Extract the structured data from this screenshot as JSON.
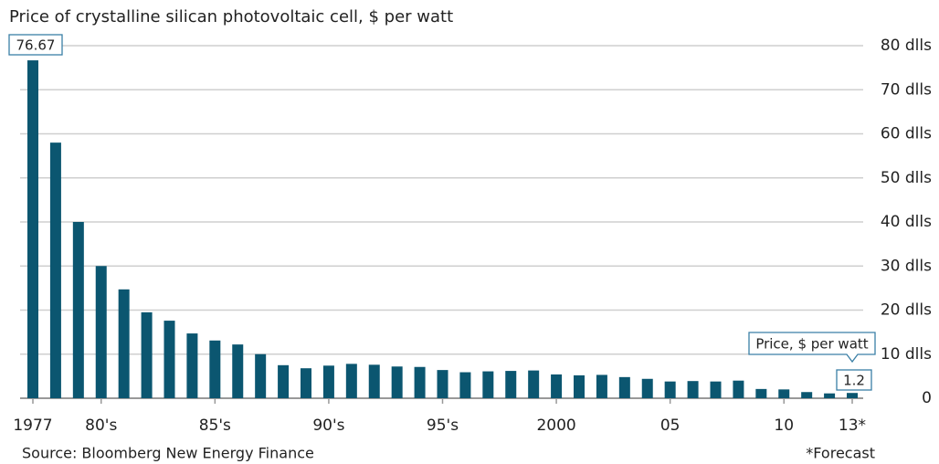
{
  "chart_data": {
    "type": "bar",
    "title": "Price of crystalline silican photovoltaic cell, $ per watt",
    "source": "Source: Bloomberg New Energy Finance",
    "footnote": "*Forecast",
    "annotation": "Price, $ per watt",
    "color": "#0b5670",
    "grid": true,
    "y_axis_side": "right",
    "categories": [
      "1977",
      null,
      null,
      "80's",
      null,
      null,
      null,
      null,
      "85's",
      null,
      null,
      null,
      null,
      "90's",
      null,
      null,
      null,
      null,
      "95's",
      null,
      null,
      null,
      null,
      "2000",
      null,
      null,
      null,
      null,
      "05",
      null,
      null,
      null,
      null,
      "10",
      null,
      null,
      "13*"
    ],
    "values": [
      76.67,
      58,
      40,
      30,
      24.7,
      19.5,
      17.6,
      14.7,
      13.1,
      12.2,
      10,
      7.5,
      6.8,
      7.4,
      7.8,
      7.6,
      7.2,
      7.1,
      6.4,
      5.9,
      6.1,
      6.2,
      6.3,
      5.4,
      5.2,
      5.3,
      4.8,
      4.4,
      3.8,
      3.9,
      3.8,
      4,
      2.1,
      2,
      1.4,
      1.1,
      1.2
    ],
    "value_labels": [
      "76.67",
      null,
      null,
      null,
      null,
      null,
      null,
      null,
      null,
      null,
      null,
      null,
      null,
      null,
      null,
      null,
      null,
      null,
      null,
      null,
      null,
      null,
      null,
      null,
      null,
      null,
      null,
      null,
      null,
      null,
      null,
      null,
      null,
      null,
      null,
      null,
      "1.2"
    ],
    "ylim": [
      0,
      80
    ],
    "yticks": [
      0,
      {
        "value": 10,
        "label": "10 dlls"
      },
      {
        "value": 20,
        "label": "20 dlls"
      },
      {
        "value": 30,
        "label": "30 dlls"
      },
      {
        "value": 40,
        "label": "40 dlls"
      },
      {
        "value": 50,
        "label": "50 dlls"
      },
      {
        "value": 60,
        "label": "60 dlls"
      },
      {
        "value": 70,
        "label": "70 dlls"
      },
      {
        "value": 80,
        "label": "80 dlls"
      }
    ]
  }
}
